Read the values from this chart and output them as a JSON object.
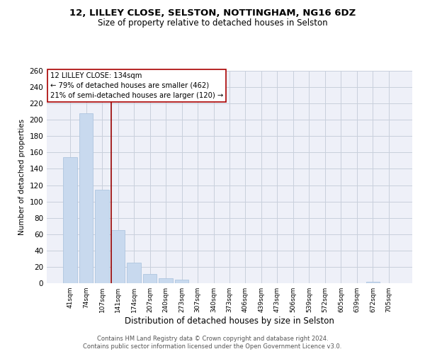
{
  "title_line1": "12, LILLEY CLOSE, SELSTON, NOTTINGHAM, NG16 6DZ",
  "title_line2": "Size of property relative to detached houses in Selston",
  "xlabel": "Distribution of detached houses by size in Selston",
  "ylabel": "Number of detached properties",
  "bar_labels": [
    "41sqm",
    "74sqm",
    "107sqm",
    "141sqm",
    "174sqm",
    "207sqm",
    "240sqm",
    "273sqm",
    "307sqm",
    "340sqm",
    "373sqm",
    "406sqm",
    "439sqm",
    "473sqm",
    "506sqm",
    "539sqm",
    "572sqm",
    "605sqm",
    "639sqm",
    "672sqm",
    "705sqm"
  ],
  "bar_values": [
    154,
    208,
    114,
    65,
    25,
    11,
    6,
    4,
    0,
    0,
    0,
    0,
    0,
    0,
    0,
    0,
    0,
    0,
    0,
    2,
    0
  ],
  "bar_color": "#c8d9ee",
  "bar_edge_color": "#aec5e0",
  "grid_color": "#c8d0dc",
  "ylim": [
    0,
    260
  ],
  "yticks": [
    0,
    20,
    40,
    60,
    80,
    100,
    120,
    140,
    160,
    180,
    200,
    220,
    240,
    260
  ],
  "property_line_color": "#990000",
  "annotation_title": "12 LILLEY CLOSE: 134sqm",
  "annotation_line1": "← 79% of detached houses are smaller (462)",
  "annotation_line2": "21% of semi-detached houses are larger (120) →",
  "annotation_box_color": "#ffffff",
  "annotation_box_edge_color": "#aa0000",
  "footer_line1": "Contains HM Land Registry data © Crown copyright and database right 2024.",
  "footer_line2": "Contains public sector information licensed under the Open Government Licence v3.0.",
  "bg_color": "#ffffff",
  "plot_bg_color": "#eef0f8"
}
